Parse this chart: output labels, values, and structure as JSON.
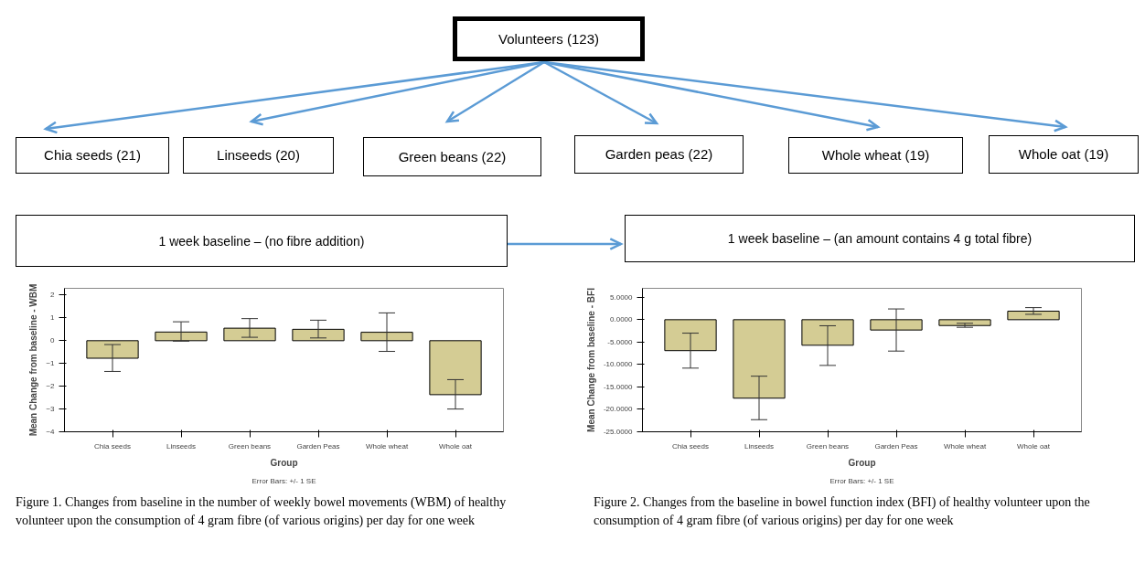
{
  "chart_data": [
    {
      "type": "other",
      "annotations": [
        "Volunteers (123)",
        "Chia seeds  (21)",
        "Linseeds (20)",
        "Green beans (22)",
        "Garden peas (22)",
        "Whole wheat (19)",
        "Whole oat (19)",
        "1 week baseline – (no fibre addition)",
        "1 week baseline – (an amount contains 4 g total fibre)"
      ]
    },
    {
      "type": "bar",
      "categories": [
        "Chia seeds",
        "Linseeds",
        "Green beans",
        "Garden Peas",
        "Whole wheat",
        "Whole oat"
      ],
      "values": [
        -0.77,
        0.38,
        0.55,
        0.5,
        0.37,
        -2.37
      ],
      "color": "#d4cc94",
      "errors": [
        [
          -1.35,
          -0.17
        ],
        [
          -0.02,
          0.83
        ],
        [
          0.15,
          0.97
        ],
        [
          0.12,
          0.9
        ],
        [
          -0.47,
          1.22
        ],
        [
          -3.0,
          -1.71
        ]
      ],
      "xlabel": "Group",
      "ylabel": "Mean Change from baseline - WBM",
      "ylim": [
        -4,
        2.3
      ],
      "yticks": [
        -4,
        -3,
        -2,
        -1,
        0,
        1,
        2
      ],
      "annotations": [
        "Error Bars: +/- 1 SE",
        "Figure 1. Changes from baseline in the number of weekly bowel movements (WBM) of healthy volunteer upon the consumption of 4 gram fibre (of various origins) per day for one week"
      ]
    },
    {
      "type": "bar",
      "categories": [
        "Chia seeds",
        "Linseeds",
        "Green beans",
        "Garden Peas",
        "Whole wheat",
        "Whole oat"
      ],
      "values": [
        -6.9,
        -17.5,
        -5.7,
        -2.3,
        -1.3,
        1.9
      ],
      "color": "#d4cc94",
      "errors": [
        [
          -10.8,
          -3.0
        ],
        [
          -22.3,
          -12.6
        ],
        [
          -10.2,
          -1.35
        ],
        [
          -7.0,
          2.4
        ],
        [
          -1.7,
          -0.8
        ],
        [
          1.2,
          2.7
        ]
      ],
      "xlabel": "Group",
      "ylabel": "Mean Change from baseline - BFI",
      "ylim": [
        -25,
        7
      ],
      "yticks": [
        {
          "value": -25,
          "label": "-25.0000"
        },
        {
          "value": -20,
          "label": "-20.0000"
        },
        {
          "value": -15,
          "label": "-15.0000"
        },
        {
          "value": -10,
          "label": "-10.0000"
        },
        {
          "value": -5,
          "label": "-5.0000"
        },
        {
          "value": 0,
          "label": "0.0000"
        },
        {
          "value": 5,
          "label": "5.0000"
        }
      ],
      "annotations": [
        "Error Bars: +/- 1 SE",
        "Figure 2. Changes from the baseline in bowel function index (BFI) of healthy volunteer upon the consumption of 4 gram fibre (of various origins) per day for one week"
      ]
    }
  ]
}
